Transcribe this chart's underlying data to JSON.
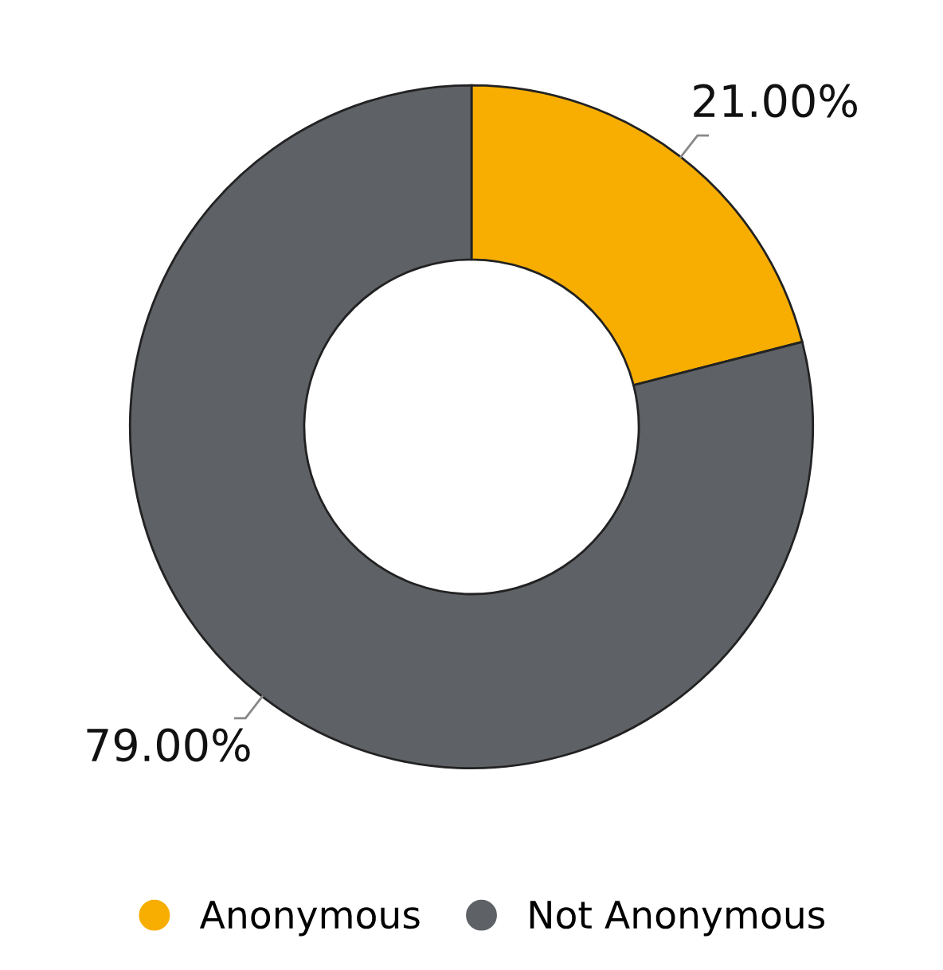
{
  "chart_data": {
    "type": "donut",
    "categories": [
      "Anonymous",
      "Not Anonymous"
    ],
    "values": [
      21,
      79
    ],
    "colors": [
      "#f7ae00",
      "#5e6166"
    ],
    "value_labels": [
      "21.00%",
      "79.00%"
    ],
    "legend": "bottom"
  }
}
